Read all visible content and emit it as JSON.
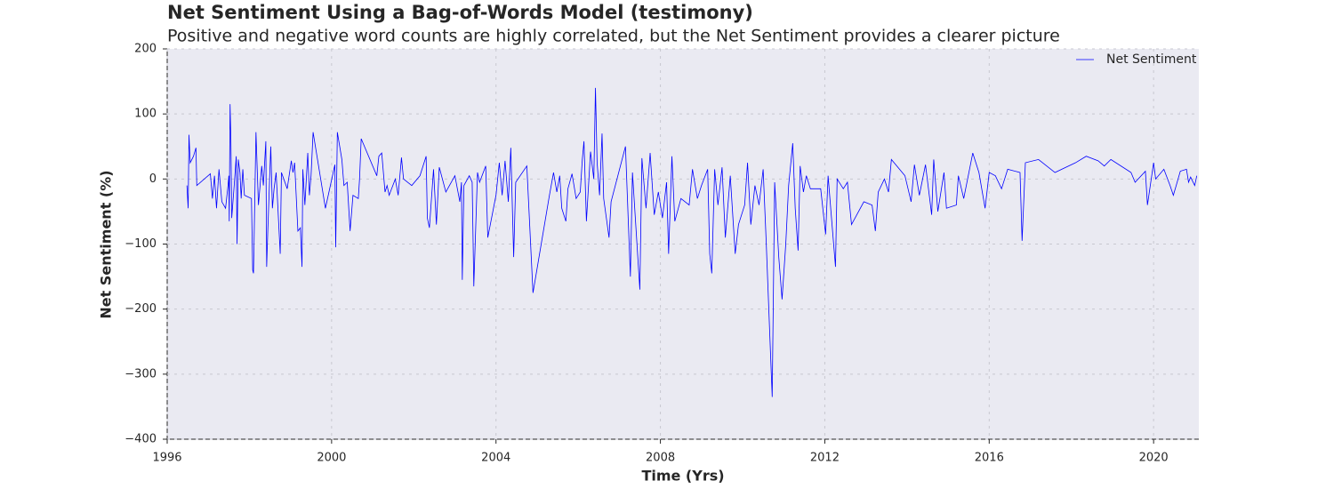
{
  "chart_data": {
    "type": "line",
    "title": "Net Sentiment Using a Bag-of-Words Model (testimony)",
    "subtitle": "Positive and negative word counts are highly correlated, but the Net Sentiment provides a clearer picture",
    "xlabel": "Time (Yrs)",
    "ylabel": "Net Sentiment (%)",
    "xlim": [
      1996,
      2021.1
    ],
    "ylim": [
      -400,
      200
    ],
    "xticks": [
      1996,
      2000,
      2004,
      2008,
      2012,
      2016,
      2020
    ],
    "yticks": [
      {
        "value": -400,
        "label": "−400"
      },
      {
        "value": -300,
        "label": "−300"
      },
      {
        "value": -200,
        "label": "−200"
      },
      {
        "value": -100,
        "label": "−100"
      },
      0,
      100,
      200
    ],
    "grid": true,
    "legend": "upper right",
    "x": [
      1996.48,
      1996.51,
      1996.53,
      1996.56,
      1996.64,
      1996.7,
      1996.72,
      1997.05,
      1997.1,
      1997.15,
      1997.2,
      1997.26,
      1997.33,
      1997.42,
      1997.48,
      1997.5,
      1997.51,
      1997.53,
      1997.55,
      1997.57,
      1997.63,
      1997.68,
      1997.7,
      1997.73,
      1997.77,
      1997.8,
      1997.84,
      1997.88,
      1998.05,
      1998.08,
      1998.1,
      1998.16,
      1998.22,
      1998.3,
      1998.34,
      1998.4,
      1998.42,
      1998.45,
      1998.52,
      1998.56,
      1998.6,
      1998.65,
      1998.75,
      1998.78,
      1998.92,
      1999.02,
      1999.06,
      1999.1,
      1999.18,
      1999.24,
      1999.28,
      1999.3,
      1999.35,
      1999.42,
      1999.46,
      1999.5,
      1999.55,
      1999.85,
      2000.08,
      2000.1,
      2000.14,
      2000.25,
      2000.3,
      2000.38,
      2000.45,
      2000.52,
      2000.65,
      2000.68,
      2000.72,
      2001.1,
      2001.15,
      2001.22,
      2001.3,
      2001.35,
      2001.4,
      2001.55,
      2001.62,
      2001.7,
      2001.75,
      2001.95,
      2002.15,
      2002.3,
      2002.33,
      2002.38,
      2002.48,
      2002.55,
      2002.62,
      2002.78,
      2003.0,
      2003.12,
      2003.16,
      2003.18,
      2003.22,
      2003.35,
      2003.42,
      2003.46,
      2003.55,
      2003.6,
      2003.75,
      2003.8,
      2004.0,
      2004.08,
      2004.15,
      2004.22,
      2004.3,
      2004.36,
      2004.43,
      2004.48,
      2004.75,
      2004.9,
      2005.1,
      2005.3,
      2005.4,
      2005.48,
      2005.55,
      2005.6,
      2005.7,
      2005.75,
      2005.85,
      2005.95,
      2006.05,
      2006.1,
      2006.14,
      2006.2,
      2006.3,
      2006.38,
      2006.42,
      2006.46,
      2006.52,
      2006.58,
      2006.62,
      2006.75,
      2006.8,
      2007.15,
      2007.27,
      2007.32,
      2007.5,
      2007.55,
      2007.65,
      2007.75,
      2007.85,
      2007.95,
      2008.05,
      2008.15,
      2008.2,
      2008.28,
      2008.35,
      2008.5,
      2008.7,
      2008.78,
      2008.9,
      2009.0,
      2009.15,
      2009.2,
      2009.25,
      2009.32,
      2009.4,
      2009.5,
      2009.58,
      2009.7,
      2009.82,
      2009.9,
      2010.05,
      2010.12,
      2010.2,
      2010.3,
      2010.4,
      2010.5,
      2010.57,
      2010.72,
      2010.78,
      2010.88,
      2010.96,
      2011.05,
      2011.12,
      2011.22,
      2011.28,
      2011.35,
      2011.4,
      2011.48,
      2011.55,
      2011.65,
      2011.9,
      2012.02,
      2012.08,
      2012.15,
      2012.26,
      2012.3,
      2012.45,
      2012.55,
      2012.65,
      2012.95,
      2013.15,
      2013.23,
      2013.3,
      2013.45,
      2013.55,
      2013.62,
      2013.95,
      2014.1,
      2014.18,
      2014.3,
      2014.45,
      2014.6,
      2014.65,
      2014.75,
      2014.9,
      2014.96,
      2015.2,
      2015.25,
      2015.38,
      2015.6,
      2015.75,
      2015.9,
      2016.0,
      2016.15,
      2016.3,
      2016.45,
      2016.75,
      2016.8,
      2016.88,
      2017.2,
      2017.6,
      2018.1,
      2018.36,
      2018.65,
      2018.8,
      2018.96,
      2019.45,
      2019.55,
      2019.8,
      2019.85,
      2020.0,
      2020.05,
      2020.25,
      2020.4,
      2020.48,
      2020.55,
      2020.65,
      2020.8,
      2020.85,
      2020.9,
      2021.0,
      2021.05
    ],
    "series": [
      {
        "name": "Net Sentiment",
        "color": "#0000ff",
        "values": [
          -10,
          -45,
          68,
          25,
          35,
          48,
          -10,
          8,
          -30,
          5,
          -45,
          15,
          -35,
          -45,
          -10,
          5,
          -65,
          115,
          60,
          -60,
          -10,
          35,
          -100,
          30,
          10,
          -30,
          15,
          -25,
          -30,
          -140,
          -145,
          72,
          -40,
          20,
          -10,
          58,
          -135,
          -75,
          50,
          -45,
          -15,
          10,
          -115,
          10,
          -15,
          28,
          10,
          25,
          -80,
          -75,
          -135,
          15,
          -40,
          40,
          -25,
          5,
          72,
          -45,
          22,
          -105,
          72,
          30,
          -10,
          -5,
          -80,
          -25,
          -30,
          0,
          62,
          5,
          35,
          40,
          -20,
          -10,
          -25,
          0,
          -25,
          33,
          0,
          -10,
          5,
          35,
          -60,
          -75,
          15,
          -70,
          18,
          -20,
          5,
          -35,
          -5,
          -155,
          -10,
          5,
          -5,
          -165,
          10,
          -5,
          20,
          -90,
          -25,
          25,
          -25,
          28,
          -35,
          48,
          -120,
          -5,
          20,
          -175,
          -100,
          -25,
          10,
          -20,
          5,
          -45,
          -65,
          -15,
          8,
          -30,
          -20,
          30,
          58,
          -65,
          42,
          0,
          140,
          25,
          -25,
          70,
          -30,
          -90,
          -35,
          50,
          -150,
          10,
          -170,
          32,
          -45,
          40,
          -55,
          -20,
          -60,
          -5,
          -115,
          35,
          -65,
          -30,
          -40,
          15,
          -30,
          -10,
          15,
          -115,
          -145,
          15,
          -40,
          18,
          -90,
          5,
          -115,
          -70,
          -40,
          25,
          -70,
          -10,
          -40,
          15,
          -90,
          -335,
          -5,
          -120,
          -185,
          -100,
          -10,
          55,
          -45,
          -110,
          20,
          -20,
          5,
          -15,
          -15,
          -85,
          5,
          -50,
          -135,
          0,
          -15,
          -5,
          -70,
          -35,
          -40,
          -80,
          -20,
          0,
          -20,
          30,
          5,
          -35,
          22,
          -25,
          22,
          -55,
          30,
          -50,
          10,
          -45,
          -40,
          5,
          -30,
          40,
          10,
          -45,
          10,
          5,
          -15,
          15,
          10,
          -95,
          25,
          30,
          10,
          25,
          35,
          28,
          20,
          30,
          10,
          -5,
          12,
          -40,
          25,
          0,
          15,
          -10,
          -25,
          -10,
          12,
          15,
          -5,
          3,
          -10,
          5
        ]
      }
    ]
  }
}
